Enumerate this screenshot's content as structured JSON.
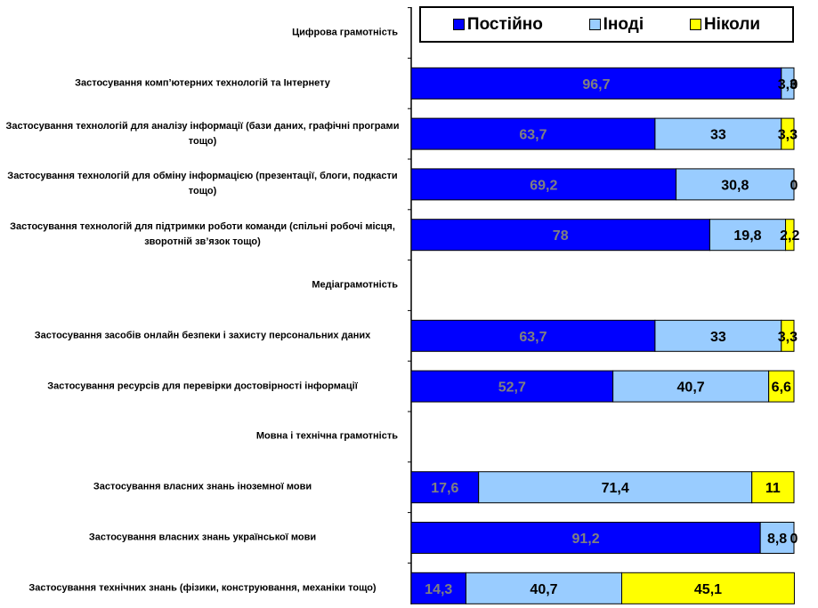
{
  "chart_data": {
    "type": "bar",
    "orientation": "horizontal",
    "stacked": true,
    "categories": [
      "Цифрова грамотність",
      "Застосування комп’ютерних технологій та Інтернету",
      "Застосування технологій для аналізу інформації (бази даних, графічні програми тощо)",
      "Застосування технологій для обміну інформацією (презентації, блоги, подкасти тощо)",
      "Застосування технологій для підтримки роботи команди (спільні робочі місця, зворотній зв’язок тощо)",
      "Медіаграмотність",
      "Застосування засобів онлайн безпеки і захисту персональних даних",
      "Застосування ресурсів для перевірки достовірності інформації",
      "Мовна і технічна  грамотність",
      "Застосування власних знань іноземної мови",
      "Застосування власних знань української мови",
      "Застосування технічних знань (фізики, конструювання, механіки тощо)"
    ],
    "group_headers": [
      0,
      5,
      8
    ],
    "series": [
      {
        "name": "Постійно",
        "color": "#0000ff",
        "label_color": "#808080",
        "values": [
          null,
          96.7,
          63.7,
          69.2,
          78,
          null,
          63.7,
          52.7,
          null,
          17.6,
          91.2,
          14.3
        ],
        "labels": [
          null,
          "96,7",
          "63,7",
          "69,2",
          "78",
          null,
          "63,7",
          "52,7",
          null,
          "17,6",
          "91,2",
          "14,3"
        ]
      },
      {
        "name": "Іноді",
        "color": "#99ccff",
        "label_color": "#000000",
        "values": [
          null,
          3.3,
          33,
          30.8,
          19.8,
          null,
          33,
          40.7,
          null,
          71.4,
          8.8,
          40.7
        ],
        "labels": [
          null,
          "3,3",
          "33",
          "30,8",
          "19,8",
          null,
          "33",
          "40,7",
          null,
          "71,4",
          "8,8",
          "40,7"
        ]
      },
      {
        "name": "Ніколи",
        "color": "#ffff00",
        "label_color": "#000000",
        "values": [
          null,
          0,
          3.3,
          0,
          2.2,
          null,
          3.3,
          6.6,
          null,
          11,
          0,
          45.1
        ],
        "labels": [
          null,
          "0",
          "3,3",
          "0",
          "2,2",
          null,
          "3,3",
          "6,6",
          null,
          "11",
          "0",
          "45,1"
        ]
      }
    ],
    "xlim": [
      0,
      100
    ],
    "legend_position": "top",
    "grid": false
  }
}
